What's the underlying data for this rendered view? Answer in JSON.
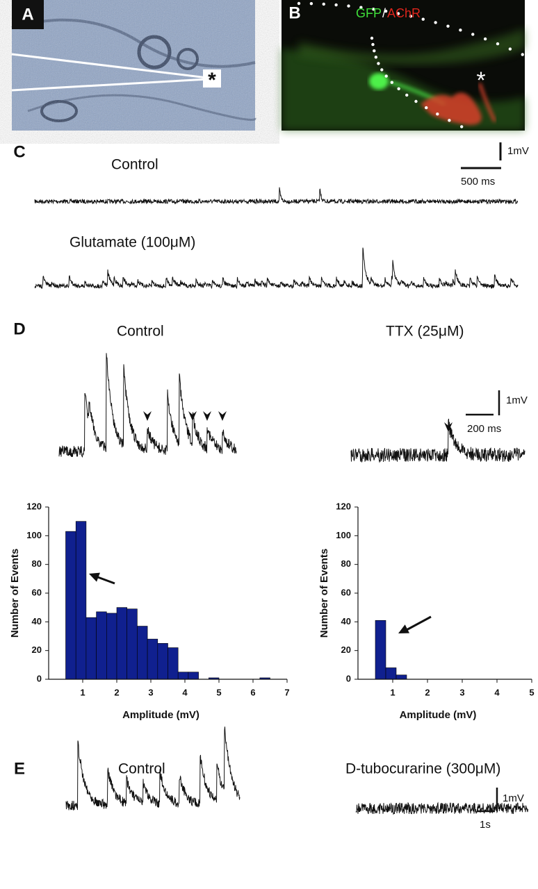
{
  "panels": {
    "a": {
      "label": "A",
      "marker": "*"
    },
    "b": {
      "label": "B",
      "stain_1": "GFP",
      "separator": "/",
      "stain_2": "AChR",
      "marker": "*"
    },
    "c": {
      "label": "C",
      "trace_1": "Control",
      "trace_2": "Glutamate (100μM)",
      "scale_y": "1mV",
      "scale_x": "500 ms"
    },
    "d": {
      "label": "D",
      "trace_1": "Control",
      "trace_2": "TTX (25μM)",
      "scale_y": "1mV",
      "scale_x": "200 ms"
    },
    "e": {
      "label": "E",
      "trace_1": "Control",
      "trace_2": "D-tubocurarine (300μM)",
      "scale_y": "1mV",
      "scale_x": "1s"
    }
  },
  "chart_data": [
    {
      "type": "histogram",
      "x_label": "Amplitude (mV)",
      "y_label": "Number of Events",
      "color": "#10208f",
      "bins": [
        0.5,
        0.8,
        1.1,
        1.4,
        1.7,
        2.0,
        2.3,
        2.6,
        2.9,
        3.2,
        3.5,
        3.8,
        4.1,
        4.4,
        4.7,
        5.0,
        5.3,
        5.6,
        5.9,
        6.2,
        6.5
      ],
      "values": [
        103,
        110,
        43,
        47,
        46,
        50,
        49,
        37,
        28,
        25,
        22,
        5,
        5,
        0,
        1,
        0,
        0,
        0,
        0,
        1
      ],
      "xlim": [
        0,
        7
      ],
      "xticks": [
        1,
        2,
        3,
        4,
        5,
        6,
        7
      ],
      "ylim": [
        0,
        120
      ],
      "yticks": [
        0,
        20,
        40,
        60,
        80,
        100,
        120
      ]
    },
    {
      "type": "histogram",
      "x_label": "Amplitude (mV)",
      "y_label": "Number of Events",
      "color": "#10208f",
      "bins": [
        0.5,
        0.8,
        1.1,
        1.4
      ],
      "values": [
        41,
        8,
        3
      ],
      "xlim": [
        0,
        5
      ],
      "xticks": [
        1,
        2,
        3,
        4,
        5
      ],
      "ylim": [
        0,
        120
      ],
      "yticks": [
        0,
        20,
        40,
        60,
        80,
        100,
        120
      ]
    }
  ]
}
